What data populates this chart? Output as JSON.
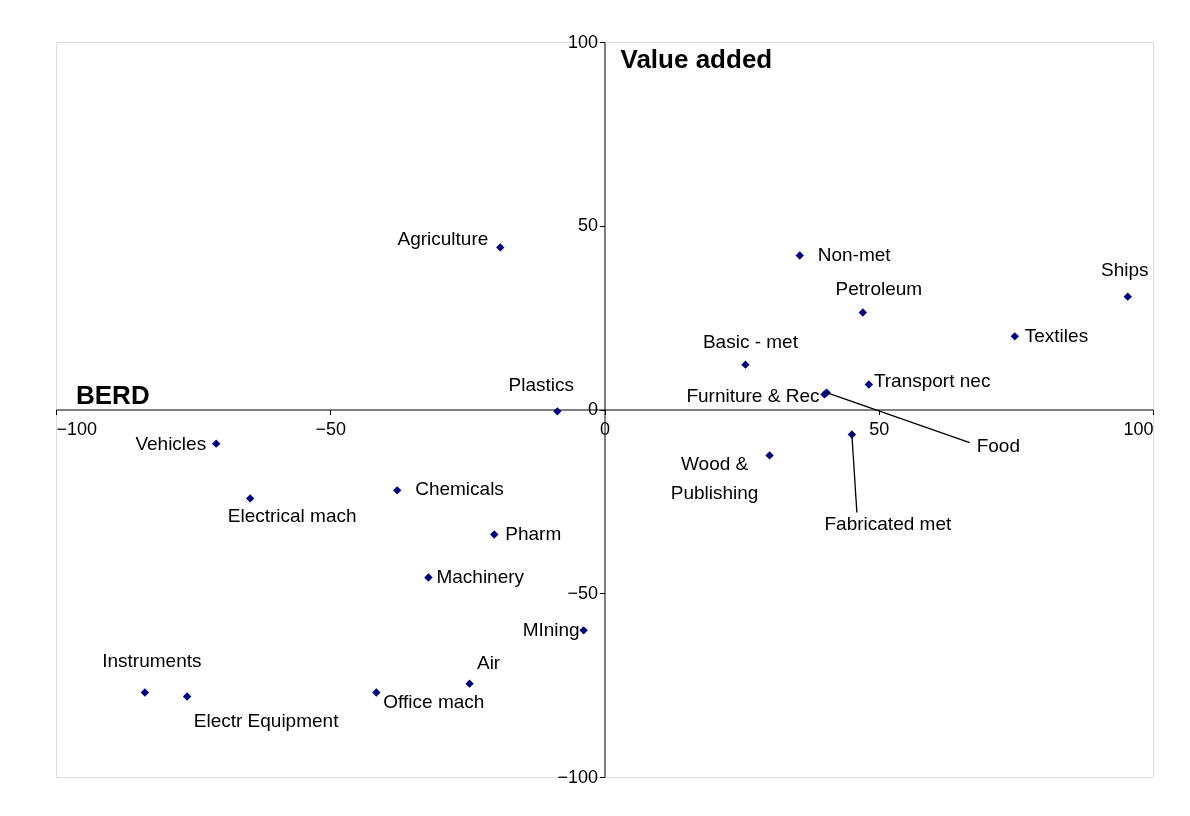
{
  "chart_data": {
    "type": "scatter",
    "xlabel": "BERD",
    "ylabel": "Value added",
    "xlim": [
      -100,
      100
    ],
    "xticks": [
      -100,
      -50,
      0,
      50,
      100
    ],
    "ylim": [
      -100,
      100
    ],
    "yticks": [
      -100,
      -50,
      0,
      50,
      100
    ],
    "grid": false,
    "marker": "diamond",
    "series": [
      {
        "color": "#000080",
        "x": [
          -19.0,
          35.6,
          95.4,
          47.1,
          74.8,
          25.7,
          48.2,
          40.1,
          40.5,
          -8.6,
          45.1,
          30.1,
          -70.8,
          -64.6,
          -37.8,
          -20.1,
          -32.1,
          -3.8,
          -24.6,
          -41.6,
          -83.8,
          -76.1
        ],
        "values": [
          44.1,
          41.9,
          30.7,
          26.4,
          19.9,
          12.2,
          6.8,
          4.1,
          4.6,
          -0.5,
          -6.8,
          -12.5,
          -9.3,
          -24.2,
          -22.0,
          -34.0,
          -45.7,
          -60.1,
          -74.6,
          -77.0,
          -77.0,
          -78.1
        ]
      }
    ],
    "annotations": [
      {
        "text": "Agriculture",
        "x": -19.0,
        "y": 44.1
      },
      {
        "text": "Non-met",
        "x": 35.6,
        "y": 41.9
      },
      {
        "text": "Ships",
        "x": 95.4,
        "y": 30.7
      },
      {
        "text": "Petroleum",
        "x": 47.1,
        "y": 26.4
      },
      {
        "text": "Textiles",
        "x": 74.8,
        "y": 19.9
      },
      {
        "text": "Basic - met",
        "x": 25.7,
        "y": 12.2
      },
      {
        "text": "Transport nec",
        "x": 48.2,
        "y": 6.8
      },
      {
        "text": "Furniture & Rec",
        "x": 40.1,
        "y": 4.1
      },
      {
        "text": "Food",
        "x": 40.5,
        "y": 4.6
      },
      {
        "text": "Plastics",
        "x": -8.6,
        "y": -0.5
      },
      {
        "text": "Fabricated met",
        "x": 45.1,
        "y": -6.8
      },
      {
        "text": "Wood &\nPublishing",
        "x": 30.1,
        "y": -12.5
      },
      {
        "text": "Vehicles",
        "x": -70.8,
        "y": -9.3
      },
      {
        "text": "Electrical mach",
        "x": -64.6,
        "y": -24.2
      },
      {
        "text": "Chemicals",
        "x": -37.8,
        "y": -22.0
      },
      {
        "text": "Pharm",
        "x": -20.1,
        "y": -34.0
      },
      {
        "text": "Machinery",
        "x": -32.1,
        "y": -45.7
      },
      {
        "text": "MIning",
        "x": -3.8,
        "y": -60.1
      },
      {
        "text": "Air",
        "x": -24.6,
        "y": -74.6
      },
      {
        "text": "Office mach",
        "x": -41.6,
        "y": -77.0
      },
      {
        "text": "Instruments",
        "x": -83.8,
        "y": -77.0
      },
      {
        "text": "Electr Equipment",
        "x": -76.1,
        "y": -78.1
      }
    ]
  }
}
